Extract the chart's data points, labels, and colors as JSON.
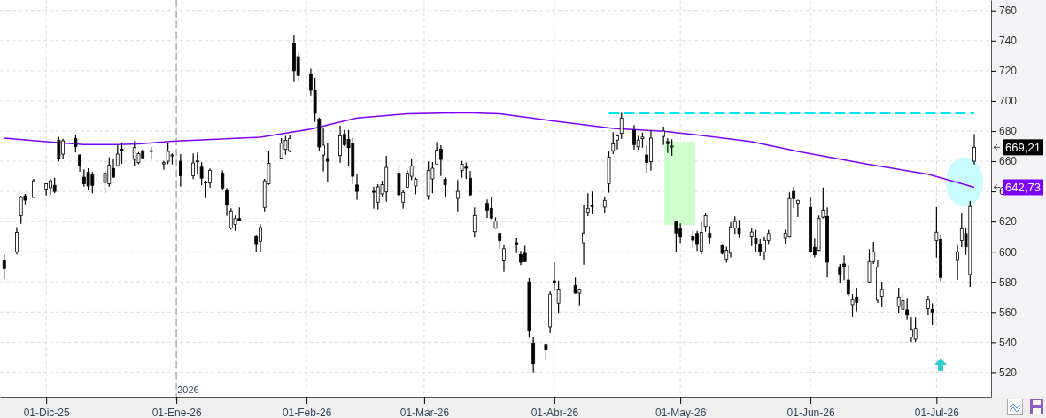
{
  "chart_data": {
    "type": "candlestick",
    "color": "#000000",
    "x": [
      "2025-11-21",
      "2025-11-24",
      "2025-11-25",
      "2025-11-26",
      "2025-11-28",
      "2025-12-01",
      "2025-12-02",
      "2025-12-03",
      "2025-12-04",
      "2025-12-05",
      "2025-12-08",
      "2025-12-09",
      "2025-12-10",
      "2025-12-11",
      "2025-12-12",
      "2025-12-15",
      "2025-12-16",
      "2025-12-17",
      "2025-12-18",
      "2025-12-19",
      "2025-12-22",
      "2025-12-23",
      "2025-12-24",
      "2025-12-26",
      "2025-12-29",
      "2025-12-30",
      "2025-12-31",
      "2026-01-02",
      "2026-01-05",
      "2026-01-06",
      "2026-01-07",
      "2026-01-08",
      "2026-01-09",
      "2026-01-12",
      "2026-01-13",
      "2026-01-14",
      "2026-01-15",
      "2026-01-16",
      "2026-01-20",
      "2026-01-21",
      "2026-01-22",
      "2026-01-23",
      "2026-01-26",
      "2026-01-27",
      "2026-01-28",
      "2026-01-29",
      "2026-01-30",
      "2026-02-02",
      "2026-02-03",
      "2026-02-04",
      "2026-02-05",
      "2026-02-06",
      "2026-02-09",
      "2026-02-10",
      "2026-02-11",
      "2026-02-12",
      "2026-02-13",
      "2026-02-17",
      "2026-02-18",
      "2026-02-19",
      "2026-02-20",
      "2026-02-23",
      "2026-02-24",
      "2026-02-25",
      "2026-02-26",
      "2026-02-27",
      "2026-03-02",
      "2026-03-03",
      "2026-03-04",
      "2026-03-05",
      "2026-03-06",
      "2026-03-09",
      "2026-03-10",
      "2026-03-11",
      "2026-03-12",
      "2026-03-13",
      "2026-03-16",
      "2026-03-17",
      "2026-03-18",
      "2026-03-19",
      "2026-03-20",
      "2026-03-23",
      "2026-03-24",
      "2026-03-25",
      "2026-03-26",
      "2026-03-27",
      "2026-03-30",
      "2026-03-31",
      "2026-04-01",
      "2026-04-02",
      "2026-04-06",
      "2026-04-07",
      "2026-04-08",
      "2026-04-09",
      "2026-04-10",
      "2026-04-13",
      "2026-04-14",
      "2026-04-15",
      "2026-04-16",
      "2026-04-17",
      "2026-04-20",
      "2026-04-21",
      "2026-04-22",
      "2026-04-23",
      "2026-04-24",
      "2026-04-27",
      "2026-04-28",
      "2026-04-29",
      "2026-04-30",
      "2026-05-01",
      "2026-05-04",
      "2026-05-05",
      "2026-05-06",
      "2026-05-07",
      "2026-05-08",
      "2026-05-11",
      "2026-05-12",
      "2026-05-13",
      "2026-05-14",
      "2026-05-15",
      "2026-05-18",
      "2026-05-19",
      "2026-05-20",
      "2026-05-21",
      "2026-05-22",
      "2026-05-26",
      "2026-05-27",
      "2026-05-28",
      "2026-05-29",
      "2026-06-01",
      "2026-06-02",
      "2026-06-03",
      "2026-06-04",
      "2026-06-05",
      "2026-06-08",
      "2026-06-09",
      "2026-06-10",
      "2026-06-11",
      "2026-06-12",
      "2026-06-15",
      "2026-06-16",
      "2026-06-17",
      "2026-06-18",
      "2026-06-22",
      "2026-06-23",
      "2026-06-24",
      "2026-06-25",
      "2026-06-26",
      "2026-06-29",
      "2026-06-30",
      "2026-07-01",
      "2026-07-02",
      "2026-07-06",
      "2026-07-07",
      "2026-07-08",
      "2026-07-09",
      "2026-07-10"
    ],
    "ohlc": [
      [
        594,
        598.2,
        581.9,
        588.8
      ],
      [
        600,
        616.2,
        598.2,
        612.8
      ],
      [
        624,
        637.1,
        618.5,
        636
      ],
      [
        637,
        638.3,
        631.4,
        634.2
      ],
      [
        636,
        648.3,
        635.7,
        647
      ],
      [
        641.6,
        645.1,
        637.3,
        645
      ],
      [
        642.4,
        648.3,
        637.7,
        647
      ],
      [
        644,
        648.9,
        638.7,
        640
      ],
      [
        674,
        676.2,
        659.8,
        661.8
      ],
      [
        664.7,
        674.9,
        661.8,
        673.5
      ],
      [
        675,
        677,
        665.7,
        669.6
      ],
      [
        664,
        664.7,
        653,
        656.9
      ],
      [
        649.4,
        654.5,
        643.2,
        645
      ],
      [
        652.6,
        655.3,
        641,
        643.6
      ],
      [
        651,
        652.8,
        638.7,
        644
      ],
      [
        645.9,
        653.2,
        638.7,
        652
      ],
      [
        645,
        662.7,
        643.2,
        657.3
      ],
      [
        655.1,
        661.2,
        649,
        649.4
      ],
      [
        657,
        671,
        656.3,
        664.7
      ],
      [
        668,
        672,
        658.2,
        667.6
      ],
      [
        661.2,
        673.3,
        656.7,
        669
      ],
      [
        659.2,
        666.1,
        658,
        665
      ],
      [
        667,
        668,
        661.8,
        662.2
      ],
      [
        667,
        669.6,
        661.2,
        667
      ],
      [
        658.2,
        660.2,
        654.3,
        659
      ],
      [
        660,
        672.3,
        657.9,
        666.5
      ],
      [
        664,
        665.1,
        657.9,
        664.1
      ],
      [
        660,
        664.7,
        643.2,
        650.4
      ],
      [
        650.4,
        665.1,
        648.1,
        658.8
      ],
      [
        660,
        665.7,
        651.8,
        660.2
      ],
      [
        656,
        659.4,
        644.1,
        648.8
      ],
      [
        646.1,
        647.1,
        635.5,
        646
      ],
      [
        645.7,
        655.1,
        642.4,
        654
      ],
      [
        652,
        653.9,
        641,
        642.2
      ],
      [
        641,
        642.2,
        623.8,
        631.2
      ],
      [
        615.6,
        628.7,
        614.6,
        627
      ],
      [
        618.1,
        624,
        613.8,
        622
      ],
      [
        622,
        629.3,
        620.1,
        620.5
      ],
      [
        610,
        611.3,
        600,
        604.8
      ],
      [
        607,
        618.1,
        600,
        616
      ],
      [
        629.3,
        648.3,
        626.7,
        647
      ],
      [
        645,
        666.5,
        644.3,
        658.6
      ],
      [
        662,
        675.3,
        661.2,
        671.9
      ],
      [
        668,
        676.8,
        664.3,
        673.9
      ],
      [
        667,
        677.6,
        665.9,
        675
      ],
      [
        738.1,
        744,
        712.4,
        720
      ],
      [
        729.3,
        732,
        713.6,
        716.8
      ],
      [
        718,
        721.4,
        703.6,
        707
      ],
      [
        706.8,
        715.4,
        686.2,
        691.7
      ],
      [
        688,
        689,
        667,
        669.4
      ],
      [
        664.1,
        681.7,
        653.1,
        670.6
      ],
      [
        661.8,
        672.3,
        646.1,
        660
      ],
      [
        663.7,
        683.5,
        659,
        676.8
      ],
      [
        677.8,
        680.7,
        669.8,
        671
      ],
      [
        674.5,
        680.7,
        656.7,
        669
      ],
      [
        672,
        675.7,
        644.9,
        650
      ],
      [
        644.2,
        651.6,
        634.4,
        640
      ],
      [
        640,
        643.2,
        628.5,
        639.6
      ],
      [
        632.8,
        644.7,
        627.9,
        643
      ],
      [
        638.3,
        647.1,
        636.5,
        644.5
      ],
      [
        639.6,
        663.5,
        633.2,
        655.9
      ],
      [
        652,
        657.7,
        635.8,
        637.7
      ],
      [
        632.8,
        641,
        628.5,
        639.3
      ],
      [
        642.8,
        653.9,
        642.4,
        652
      ],
      [
        650,
        661.2,
        647.5,
        656.9
      ],
      [
        643.6,
        649.2,
        638.1,
        648
      ],
      [
        637.1,
        659.8,
        634.4,
        653.7
      ],
      [
        648.3,
        659.4,
        638.7,
        655.3
      ],
      [
        658.2,
        672.7,
        657.9,
        667.4
      ],
      [
        668,
        670.6,
        650.2,
        661.2
      ],
      [
        648,
        649.2,
        636.1,
        644.5
      ],
      [
        635.3,
        647.5,
        626.7,
        640
      ],
      [
        653.9,
        660.2,
        649,
        658
      ],
      [
        656,
        659.2,
        648.1,
        655.3
      ],
      [
        648.7,
        653.5,
        636.9,
        637.7
      ],
      [
        613.2,
        629.3,
        609.3,
        624
      ],
      [
        632,
        634.6,
        622.4,
        627.5
      ],
      [
        628.7,
        636.5,
        621.6,
        622.4
      ],
      [
        615.5,
        622.8,
        615.2,
        620.3
      ],
      [
        612,
        612.6,
        602.1,
        607.4
      ],
      [
        594,
        604.4,
        586.8,
        602
      ],
      [
        606,
        608.9,
        599.1,
        604.6
      ],
      [
        598,
        600.5,
        591.1,
        593.1
      ],
      [
        599,
        604,
        593.5,
        593.5
      ],
      [
        580,
        582.5,
        542.9,
        547.4
      ],
      [
        539.3,
        543.5,
        520,
        525.7
      ],
      [
        538,
        539.2,
        527.9,
        535.2
      ],
      [
        550.2,
        573.7,
        546.1,
        571.9
      ],
      [
        580.7,
        592.7,
        574.1,
        579.5
      ],
      [
        565.9,
        580.9,
        559.5,
        575.1
      ],
      [
        577.6,
        582.9,
        572.1,
        572.5
      ],
      [
        572.5,
        575.5,
        564.5,
        575
      ],
      [
        606,
        631.2,
        591.5,
        612.3
      ],
      [
        626.3,
        638.7,
        623.6,
        628.5
      ],
      [
        631,
        639.9,
        624.8,
        629.9
      ],
      [
        629.5,
        636.1,
        625.6,
        634
      ],
      [
        645.1,
        666.9,
        639.1,
        662.7
      ],
      [
        667,
        679.2,
        664.7,
        671.5
      ],
      [
        674,
        677.8,
        667.8,
        676.8
      ],
      [
        678.4,
        692.2,
        674.9,
        688.6
      ],
      [
        680.5,
        683.9,
        667.6,
        671
      ],
      [
        669.6,
        676.8,
        667.6,
        674
      ],
      [
        674.9,
        679,
        669,
        676
      ],
      [
        664.1,
        670.4,
        652.6,
        659.2
      ],
      [
        659.6,
        680.7,
        653.7,
        675.3
      ],
      [
        676.4,
        682.9,
        670.8,
        680
      ],
      [
        673,
        675.3,
        665.5,
        671.7
      ],
      [
        669.6,
        674.5,
        663.5,
        670
      ],
      [
        619.7,
        620.5,
        600,
        612.3
      ],
      [
        615,
        618.8,
        605.8,
        609.7
      ],
      [
        610,
        614.1,
        602.9,
        607.7
      ],
      [
        612,
        613.8,
        600.5,
        604.8
      ],
      [
        600.5,
        619.7,
        598.2,
        612.8
      ],
      [
        616.7,
        625.4,
        613.2,
        624
      ],
      [
        612,
        616.9,
        605.6,
        609.3
      ],
      [
        604,
        604.6,
        598.2,
        599
      ],
      [
        594.6,
        603.4,
        592.7,
        601
      ],
      [
        599,
        619.7,
        596.3,
        616.4
      ],
      [
        615.8,
        623.4,
        611.7,
        620
      ],
      [
        615.2,
        621,
        609.1,
        612
      ],
      [
        609.7,
        616,
        603.8,
        613
      ],
      [
        608.7,
        614.4,
        600.3,
        605
      ],
      [
        605.2,
        608.3,
        597.2,
        600
      ],
      [
        600,
        609.7,
        594.2,
        607.6
      ],
      [
        607.4,
        614.4,
        604.6,
        612
      ],
      [
        608.9,
        614.6,
        604.8,
        612.2
      ],
      [
        609.7,
        639.3,
        609.3,
        635.2
      ],
      [
        640,
        643,
        628.9,
        635.2
      ],
      [
        632.2,
        634.4,
        623,
        634
      ],
      [
        629.3,
        636,
        599.3,
        600.3
      ],
      [
        602.9,
        608.7,
        596.3,
        598
      ],
      [
        600.9,
        624,
        600.5,
        622
      ],
      [
        623,
        642.6,
        622.2,
        627.5
      ],
      [
        623.4,
        629.3,
        582.9,
        593.1
      ],
      [
        590,
        591.9,
        579.2,
        585.2
      ],
      [
        591.9,
        597.6,
        581.2,
        590
      ],
      [
        581.3,
        591.1,
        570.4,
        572
      ],
      [
        564.9,
        571.9,
        556.8,
        568
      ],
      [
        570,
        576,
        560.4,
        566.5
      ],
      [
        580,
        601.7,
        579.6,
        593.5
      ],
      [
        593.5,
        606.6,
        591.9,
        600
      ],
      [
        567.8,
        594.2,
        566.1,
        590
      ],
      [
        570.5,
        580.1,
        563.1,
        575
      ],
      [
        563.7,
        576.1,
        559.6,
        570
      ],
      [
        561.8,
        572.5,
        561.4,
        567.5
      ],
      [
        561.4,
        568.8,
        555.1,
        558
      ],
      [
        543.5,
        556.5,
        540,
        548
      ],
      [
        542,
        556.5,
        540,
        549.2
      ],
      [
        562.3,
        570.7,
        557.9,
        568
      ],
      [
        561.8,
        565.8,
        551.3,
        560
      ],
      [
        607.4,
        629.5,
        596.2,
        612.9
      ],
      [
        608,
        611.3,
        580.5,
        582.9
      ],
      [
        594.2,
        604.4,
        581.5,
        600
      ],
      [
        607.4,
        625.4,
        603,
        615.2
      ],
      [
        612,
        616,
        598,
        603.2
      ],
      [
        584.9,
        633.6,
        576.6,
        630
      ],
      [
        660,
        678,
        657.8,
        669.21
      ]
    ],
    "series": [
      {
        "type": "line",
        "color": "#8000ff",
        "x": [
          "2025-11-21",
          "2025-12-01",
          "2025-12-10",
          "2025-12-18",
          "2025-12-23",
          "2025-12-31",
          "2026-01-21",
          "2026-02-02",
          "2026-02-13",
          "2026-02-25",
          "2026-03-11",
          "2026-03-19",
          "2026-03-25",
          "2026-04-01",
          "2026-04-15",
          "2026-04-27",
          "2026-05-04",
          "2026-05-18",
          "2026-05-29",
          "2026-06-15",
          "2026-06-29",
          "2026-07-10"
        ],
        "values": [
          675.3,
          672.9,
          671,
          671,
          671.5,
          673.3,
          675.9,
          681.3,
          688.6,
          691.5,
          692.1,
          691.5,
          689.2,
          686.6,
          681.7,
          679.8,
          677.8,
          672.9,
          666.5,
          657.8,
          651.4,
          642.7
        ]
      },
      {
        "type": "line",
        "color": "#00e5ee",
        "line_style": "dashed",
        "x": [
          "2026-04-14",
          "2026-07-10"
        ],
        "values": [
          692,
          692
        ]
      }
    ],
    "xlim": [
      "2025-11-20",
      "2026-07-14"
    ],
    "ylim": [
      503.8,
      766.9
    ],
    "yticks": [
      520,
      540,
      560,
      580,
      600,
      620,
      640,
      660,
      680,
      700,
      720,
      740,
      760
    ],
    "xticks": [
      {
        "value": "2025-12-01",
        "label": "01-Dic-25"
      },
      {
        "value": "2026-01-01",
        "label": "01-Ene-26"
      },
      {
        "value": "2026-02-01",
        "label": "01-Feb-26"
      },
      {
        "value": "2026-03-01",
        "label": "01-Mar-26"
      },
      {
        "value": "2026-04-01",
        "label": "01-Abr-26"
      },
      {
        "value": "2026-05-01",
        "label": "01-May-26"
      },
      {
        "value": "2026-06-01",
        "label": "01-Jun-26"
      },
      {
        "value": "2026-07-01",
        "label": "01-Jul-26"
      }
    ],
    "grid": true,
    "ref_lines": [
      {
        "axis": "x",
        "value": "2026-01-01",
        "label": "2026",
        "color": "#b0b0b0",
        "line_style": "dashed"
      }
    ],
    "annotations": [
      "669,21",
      "642,73"
    ]
  }
}
